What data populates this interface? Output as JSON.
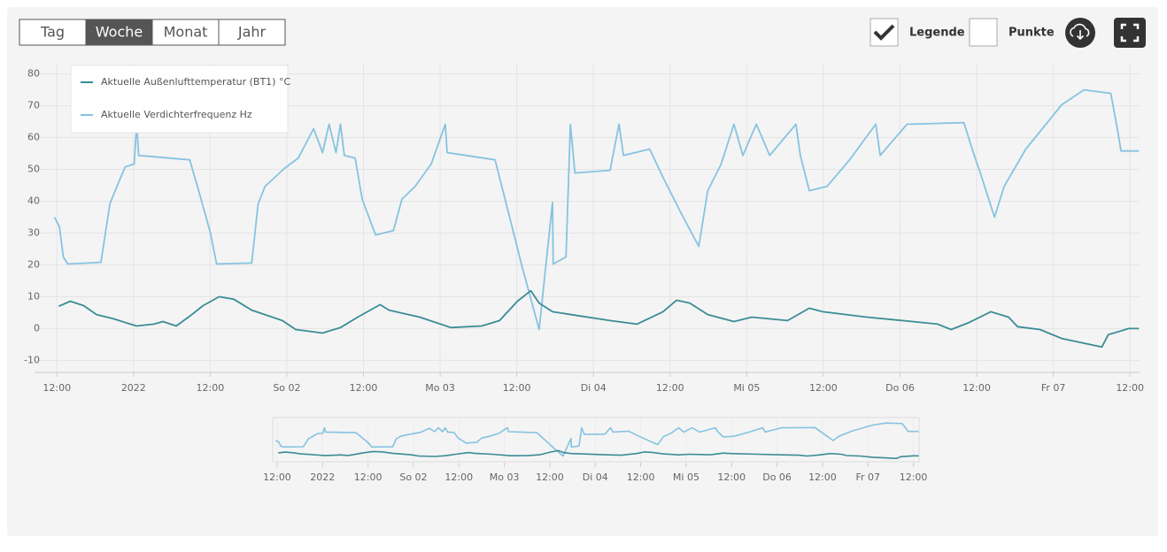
{
  "toolbar": {
    "ranges": [
      {
        "label": "Tag",
        "selected": false
      },
      {
        "label": "Woche",
        "selected": true
      },
      {
        "label": "Monat",
        "selected": false
      },
      {
        "label": "Jahr",
        "selected": false
      }
    ],
    "options": [
      {
        "label": "Legende",
        "checked": true
      },
      {
        "label": "Punkte",
        "checked": false
      }
    ]
  },
  "chart_data": {
    "type": "line",
    "grid": true,
    "legend": "top-left",
    "xlim": [
      -3.5,
      169.5
    ],
    "ylim": [
      -13.5,
      83.5
    ],
    "xticks": [
      {
        "value": 0,
        "label": "12:00"
      },
      {
        "value": 12,
        "label": "2022"
      },
      {
        "value": 24,
        "label": "12:00"
      },
      {
        "value": 36,
        "label": "So 02"
      },
      {
        "value": 48,
        "label": "12:00"
      },
      {
        "value": 60,
        "label": "Mo 03"
      },
      {
        "value": 72,
        "label": "12:00"
      },
      {
        "value": 84,
        "label": "Di 04"
      },
      {
        "value": 96,
        "label": "12:00"
      },
      {
        "value": 108,
        "label": "Mi 05"
      },
      {
        "value": 120,
        "label": "12:00"
      },
      {
        "value": 132,
        "label": "Do 06"
      },
      {
        "value": 144,
        "label": "12:00"
      },
      {
        "value": 156,
        "label": "Fr 07"
      },
      {
        "value": 168,
        "label": "12:00"
      }
    ],
    "yticks": [
      -10,
      0,
      10,
      20,
      30,
      40,
      50,
      60,
      70,
      80
    ],
    "series": [
      {
        "name": "Aktuelle Außenlufttemperatur (BT1) °C",
        "color": "#3b8c96",
        "x": [
          0.3,
          2.1,
          4.2,
          6.2,
          9,
          11,
          12.5,
          15.2,
          16.6,
          18.7,
          20.8,
          22.9,
          25.4,
          27.7,
          30.5,
          35.3,
          37.4,
          41.6,
          44.4,
          47.1,
          50.6,
          52,
          56.8,
          61.7,
          66.5,
          69.3,
          72.1,
          74.2,
          75.5,
          77.6,
          81.1,
          86.6,
          90.8,
          94.9,
          97,
          99.1,
          101.9,
          106,
          108.8,
          114.4,
          117.8,
          119.9,
          126.8,
          132.4,
          137.9,
          140,
          142.8,
          146.2,
          149,
          150.4,
          153.9,
          157.3,
          163.6,
          164.6,
          167.8,
          169.4
        ],
        "values": [
          7,
          8.6,
          7.2,
          4.4,
          3,
          1.7,
          0.8,
          1.4,
          2.2,
          0.8,
          3.9,
          7.2,
          10,
          9.2,
          5.8,
          2.5,
          -0.3,
          -1.4,
          0.3,
          3.6,
          7.5,
          5.8,
          3.6,
          0.3,
          0.8,
          2.5,
          8.6,
          11.9,
          8,
          5.3,
          4.2,
          2.5,
          1.4,
          5.3,
          8.9,
          8,
          4.4,
          2.2,
          3.6,
          2.5,
          6.4,
          5.3,
          3.6,
          2.5,
          1.4,
          -0.3,
          1.9,
          5.3,
          3.6,
          0.6,
          -0.3,
          -3.1,
          -5.8,
          -1.9,
          0,
          0
        ]
      },
      {
        "name": "Aktuelle Verdichterfrequenz Hz",
        "color": "#86c3e1",
        "x": [
          -0.4,
          0.4,
          1,
          1.7,
          6.9,
          8.3,
          9.7,
          10.7,
          12.1,
          12.5,
          12.8,
          20.8,
          22.2,
          24,
          25,
          30.5,
          31.5,
          32.6,
          35.6,
          37.8,
          40.2,
          41.6,
          42.6,
          43.7,
          44.4,
          45,
          46.7,
          47.8,
          49.9,
          52.7,
          54,
          56.1,
          58.6,
          60.8,
          61.1,
          68.6,
          70.7,
          72.8,
          75.5,
          77.6,
          77.7,
          79.7,
          80.4,
          81.1,
          86.6,
          88,
          88.7,
          92.8,
          94.9,
          97.7,
          100.5,
          101.9,
          104,
          106,
          107.4,
          109.5,
          111.6,
          115.7,
          116.4,
          117.8,
          120.6,
          124.1,
          128.2,
          128.9,
          133.1,
          133.8,
          142,
          143.4,
          144.8,
          146.8,
          148.3,
          151.7,
          157.3,
          160.8,
          165,
          165.9,
          166.6,
          169.4
        ],
        "values": [
          35,
          32,
          22.5,
          20.3,
          20.8,
          39.2,
          46.1,
          50.8,
          51.7,
          64.2,
          54.4,
          53,
          43.3,
          30.3,
          20.3,
          20.6,
          39.2,
          44.7,
          50.3,
          53.6,
          62.8,
          55.3,
          64.2,
          55.3,
          64.2,
          54.4,
          53.6,
          40.6,
          29.4,
          30.8,
          40.6,
          44.7,
          51.7,
          64.2,
          55.3,
          53,
          36.4,
          19.7,
          -0.3,
          39.7,
          20.3,
          22.5,
          64.2,
          48.9,
          49.7,
          64.2,
          54.4,
          56.4,
          47.5,
          36.4,
          25.8,
          43.3,
          51.7,
          64.2,
          54.4,
          64.2,
          54.4,
          64.2,
          54.4,
          43.3,
          44.7,
          53,
          64.2,
          54.4,
          64.2,
          64.2,
          64.7,
          55.8,
          47.5,
          35,
          44.7,
          56.4,
          70.3,
          75,
          73.9,
          64.2,
          55.8,
          55.8
        ]
      }
    ]
  }
}
